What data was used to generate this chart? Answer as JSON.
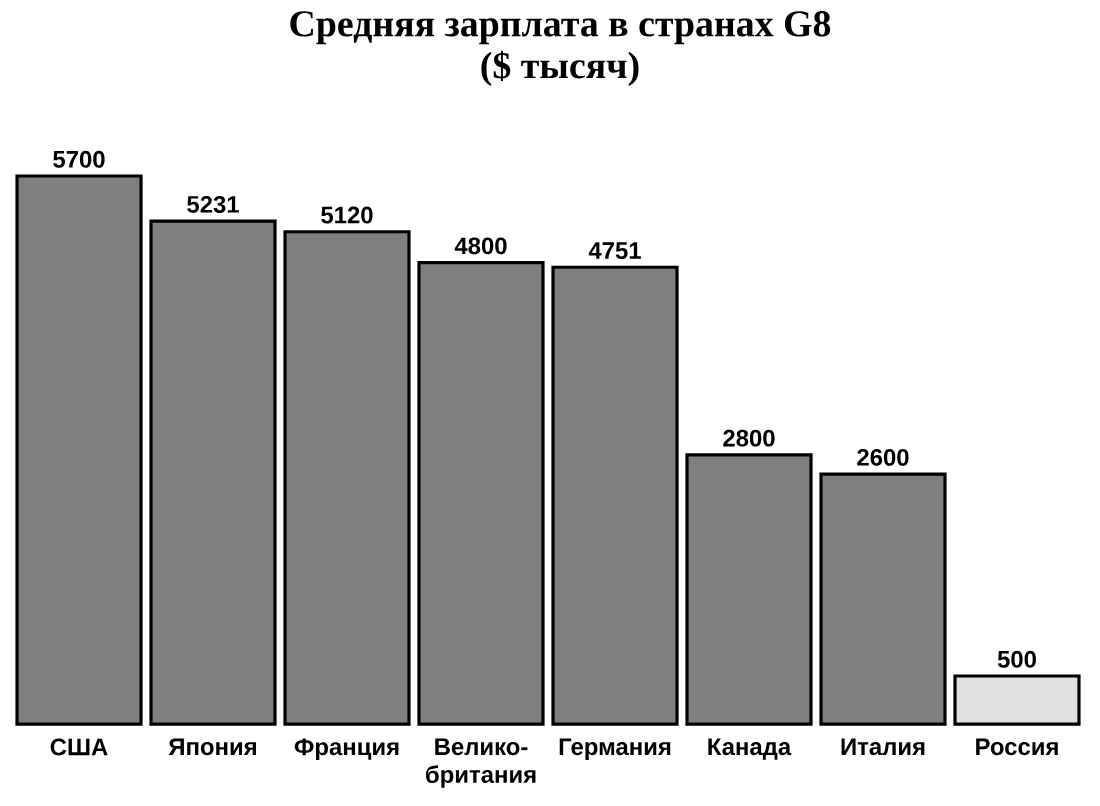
{
  "chart_data": {
    "type": "bar",
    "title": "Средняя зарплата в странах G8",
    "subtitle": "($ тысяч)",
    "categories": [
      "США",
      "Япония",
      "Франция",
      "Велико-британия",
      "Германия",
      "Канада",
      "Италия",
      "Россия"
    ],
    "values": [
      5700,
      5231,
      5120,
      4800,
      4751,
      2800,
      2600,
      500
    ],
    "colors": [
      "#7f7f7f",
      "#7f7f7f",
      "#7f7f7f",
      "#7f7f7f",
      "#7f7f7f",
      "#7f7f7f",
      "#7f7f7f",
      "#e0e0e0"
    ],
    "data_labels": true
  }
}
